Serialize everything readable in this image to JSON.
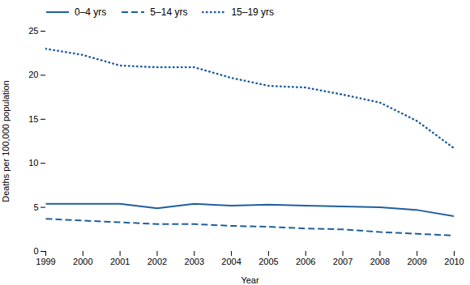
{
  "chart_data": {
    "type": "line",
    "x": [
      1999,
      2000,
      2001,
      2002,
      2003,
      2004,
      2005,
      2006,
      2007,
      2008,
      2009,
      2010
    ],
    "series": [
      {
        "name": "0–4 yrs",
        "color": "#1f5f9e",
        "line_style": "solid",
        "values": [
          5.4,
          5.4,
          5.4,
          4.9,
          5.4,
          5.2,
          5.3,
          5.2,
          5.1,
          5.0,
          4.7,
          4.0
        ]
      },
      {
        "name": "5–14 yrs",
        "color": "#1f5f9e",
        "line_style": "dashed",
        "values": [
          3.7,
          3.5,
          3.3,
          3.1,
          3.1,
          2.9,
          2.8,
          2.6,
          2.5,
          2.2,
          2.0,
          1.8
        ]
      },
      {
        "name": "15–19 yrs",
        "color": "#1f5f9e",
        "line_style": "dotted",
        "values": [
          23.0,
          22.3,
          21.1,
          20.9,
          20.9,
          19.7,
          18.8,
          18.6,
          17.8,
          16.9,
          14.8,
          11.7
        ]
      }
    ],
    "xlabel": "Year",
    "ylabel": "Deaths per 100,000 population",
    "xlim": [
      1999,
      2010
    ],
    "xticks": [
      1999,
      2000,
      2001,
      2002,
      2003,
      2004,
      2005,
      2006,
      2007,
      2008,
      2009,
      2010
    ],
    "ylim": [
      0,
      25
    ],
    "yticks": [
      0,
      5,
      10,
      15,
      20,
      25
    ],
    "grid": false,
    "legend": "upper left"
  }
}
